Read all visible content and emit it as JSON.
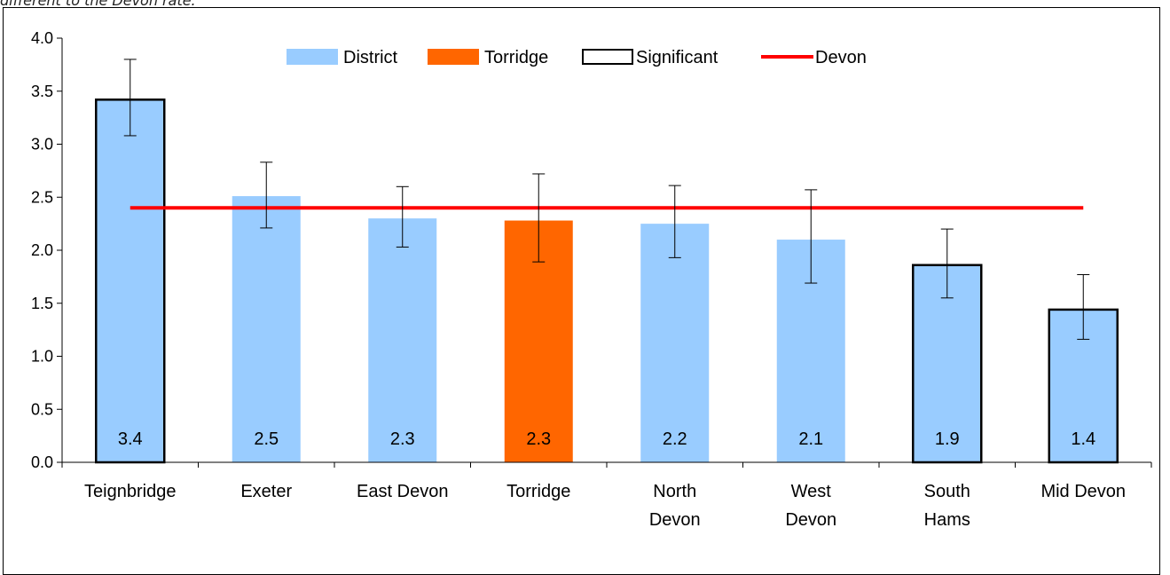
{
  "caption": "different to the Devon rate.",
  "chart_data": {
    "type": "bar",
    "categories": [
      [
        "Teignbridge"
      ],
      [
        "Exeter"
      ],
      [
        "East Devon"
      ],
      [
        "Torridge"
      ],
      [
        "North",
        "Devon"
      ],
      [
        "West",
        "Devon"
      ],
      [
        "South",
        "Hams"
      ],
      [
        "Mid Devon"
      ]
    ],
    "values": [
      3.42,
      2.51,
      2.3,
      2.28,
      2.25,
      2.1,
      1.86,
      1.44
    ],
    "value_labels": [
      "3.4",
      "2.5",
      "2.3",
      "2.3",
      "2.2",
      "2.1",
      "1.9",
      "1.4"
    ],
    "error_low": [
      3.08,
      2.21,
      2.03,
      1.89,
      1.93,
      1.69,
      1.55,
      1.16
    ],
    "error_high": [
      3.8,
      2.83,
      2.6,
      2.72,
      2.61,
      2.57,
      2.2,
      1.77
    ],
    "bar_type": [
      "significant",
      "district",
      "district",
      "torridge",
      "district",
      "district",
      "significant",
      "significant"
    ],
    "devon_line": 2.4,
    "ylim": [
      0,
      4.0
    ],
    "yticks": [
      "0.0",
      "0.5",
      "1.0",
      "1.5",
      "2.0",
      "2.5",
      "3.0",
      "3.5",
      "4.0"
    ],
    "ytick_values": [
      0,
      0.5,
      1.0,
      1.5,
      2.0,
      2.5,
      3.0,
      3.5,
      4.0
    ],
    "colors": {
      "district": "#99ccff",
      "torridge": "#ff6600",
      "devon": "#ff0000",
      "outline": "#000000"
    },
    "legend": {
      "position": "top-center",
      "items": [
        {
          "label": "District",
          "kind": "district"
        },
        {
          "label": "Torridge",
          "kind": "torridge"
        },
        {
          "label": "Significant",
          "kind": "significant"
        },
        {
          "label": "Devon",
          "kind": "devon"
        }
      ]
    }
  }
}
